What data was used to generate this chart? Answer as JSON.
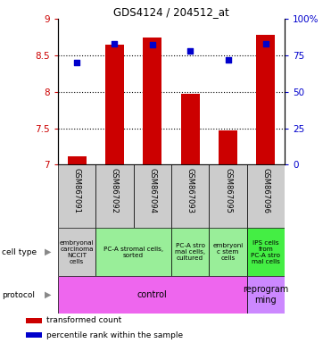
{
  "title": "GDS4124 / 204512_at",
  "samples": [
    "GSM867091",
    "GSM867092",
    "GSM867094",
    "GSM867093",
    "GSM867095",
    "GSM867096"
  ],
  "transformed_counts": [
    7.12,
    8.65,
    8.75,
    7.97,
    7.47,
    8.78
  ],
  "percentile_ranks": [
    70,
    83,
    82,
    78,
    72,
    83
  ],
  "ylim_left": [
    7.0,
    9.0
  ],
  "ylim_right": [
    0,
    100
  ],
  "yticks_left": [
    7.0,
    7.5,
    8.0,
    8.5,
    9.0
  ],
  "yticks_right": [
    0,
    25,
    50,
    75,
    100
  ],
  "ytick_labels_left": [
    "7",
    "7.5",
    "8",
    "8.5",
    "9"
  ],
  "ytick_labels_right": [
    "0",
    "25",
    "50",
    "75",
    "100%"
  ],
  "bar_color": "#cc0000",
  "dot_color": "#0000cc",
  "bar_width": 0.5,
  "left_label_color": "#cc0000",
  "right_label_color": "#0000cc",
  "cell_groups": [
    [
      0,
      1,
      "#cccccc",
      "embryonal\ncarcinoma\nNCCIT\ncells"
    ],
    [
      1,
      3,
      "#99ee99",
      "PC-A stromal cells,\nsorted"
    ],
    [
      3,
      4,
      "#99ee99",
      "PC-A stro\nmal cells,\ncultured"
    ],
    [
      4,
      5,
      "#99ee99",
      "embryoni\nc stem\ncells"
    ],
    [
      5,
      6,
      "#44ee44",
      "IPS cells\nfrom\nPC-A stro\nmal cells"
    ]
  ],
  "proto_groups": [
    [
      0,
      5,
      "#ee66ee",
      "control"
    ],
    [
      5,
      6,
      "#cc88ff",
      "reprogram\nming"
    ]
  ],
  "legend_items": [
    [
      "#cc0000",
      "transformed count"
    ],
    [
      "#0000cc",
      "percentile rank within the sample"
    ]
  ]
}
